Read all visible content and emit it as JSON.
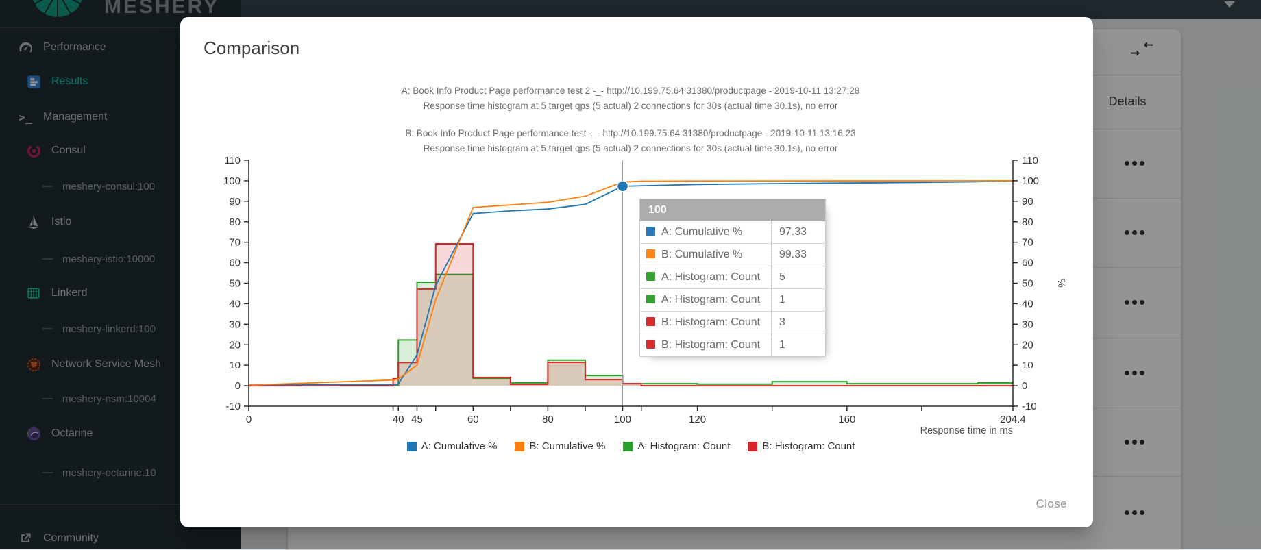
{
  "app": {
    "logo_text": "MESHERY"
  },
  "navbar": {},
  "sidebar": {
    "items": [
      {
        "label": "Performance",
        "icon": "speedometer-icon",
        "indent": 0,
        "active": false
      },
      {
        "label": "Results",
        "icon": "results-icon",
        "indent": 1,
        "active": true
      },
      {
        "label": "Management",
        "icon": "terminal-icon",
        "indent": 0,
        "active": false
      },
      {
        "label": "Consul",
        "icon": "consul-icon",
        "indent": 1,
        "active": false
      },
      {
        "label": "meshery-consul:100",
        "icon": "dash-icon",
        "indent": 2,
        "active": false
      },
      {
        "label": "Istio",
        "icon": "istio-icon",
        "indent": 1,
        "active": false
      },
      {
        "label": "meshery-istio:10000",
        "icon": "dash-icon",
        "indent": 2,
        "active": false
      },
      {
        "label": "Linkerd",
        "icon": "linkerd-icon",
        "indent": 1,
        "active": false
      },
      {
        "label": "meshery-linkerd:100",
        "icon": "dash-icon",
        "indent": 2,
        "active": false
      },
      {
        "label": "Network Service Mesh",
        "icon": "nsm-icon",
        "indent": 1,
        "active": false
      },
      {
        "label": "meshery-nsm:10004",
        "icon": "dash-icon",
        "indent": 2,
        "active": false
      },
      {
        "label": "Octarine",
        "icon": "octarine-icon",
        "indent": 1,
        "active": false
      },
      {
        "label": "meshery-octarine:10",
        "icon": "dash-icon",
        "indent": 2,
        "active": false
      },
      {
        "label": "Community",
        "icon": "external-link-icon",
        "indent": 0,
        "active": false
      }
    ]
  },
  "results_table": {
    "details_header": "Details",
    "row_count": 6,
    "collapse_icon": "compress-icon",
    "row_action_icon": "more-options-icon"
  },
  "modal": {
    "title": "Comparison",
    "close_label": "Close",
    "test_a_line1": "A: Book Info Product Page performance test 2 -_- http://10.199.75.64:31380/productpage - 2019-10-11 13:27:28",
    "test_a_line2": "Response time histogram at 5 target qps (5 actual) 2 connections for 30s (actual time 30.1s), no error",
    "test_b_line1": "B: Book Info Product Page performance test -_- http://10.199.75.64:31380/productpage - 2019-10-11 13:16:23",
    "test_b_line2": "Response time histogram at 5 target qps (5 actual) 2 connections for 30s (actual time 30.1s), no error"
  },
  "tooltip": {
    "header": "100",
    "rows": [
      {
        "name": "A: Cumulative %",
        "value": "97.33",
        "color": "#1f77b4"
      },
      {
        "name": "B: Cumulative %",
        "value": "99.33",
        "color": "#ff7f0e"
      },
      {
        "name": "A: Histogram: Count",
        "value": "5",
        "color": "#2ca02c"
      },
      {
        "name": "A: Histogram: Count",
        "value": "1",
        "color": "#2ca02c"
      },
      {
        "name": "B: Histogram: Count",
        "value": "3",
        "color": "#d62728"
      },
      {
        "name": "B: Histogram: Count",
        "value": "1",
        "color": "#d62728"
      }
    ]
  },
  "legend": [
    {
      "label": "A: Cumulative %",
      "color": "#1f77b4"
    },
    {
      "label": "B: Cumulative %",
      "color": "#ff7f0e"
    },
    {
      "label": "A: Histogram: Count",
      "color": "#2ca02c"
    },
    {
      "label": "B: Histogram: Count",
      "color": "#d62728"
    }
  ],
  "chart_data": {
    "type": "line+area-step",
    "title": "",
    "xlabel": "Response time in ms",
    "ylabel": "%",
    "x_axis": {
      "min": 0,
      "max": 204.4,
      "labeled_ticks": [
        0,
        40,
        45,
        60,
        80,
        100,
        120,
        160,
        204.4
      ],
      "minor_ticks": [
        38.6,
        50,
        70,
        90,
        105,
        140,
        180
      ]
    },
    "y_axis": {
      "min": -10,
      "max": 110,
      "dual": true,
      "ticks": [
        -10,
        0,
        10,
        20,
        30,
        40,
        50,
        60,
        70,
        80,
        90,
        100,
        110
      ]
    },
    "grid": false,
    "legend_position": "bottom",
    "series": [
      {
        "name": "A: Cumulative %",
        "type": "line",
        "color": "#1f77b4",
        "points": [
          [
            0,
            0.33
          ],
          [
            38.6,
            0.5
          ],
          [
            40,
            0.9
          ],
          [
            45,
            15
          ],
          [
            50,
            49
          ],
          [
            60,
            84
          ],
          [
            70,
            85.3
          ],
          [
            80,
            86.2
          ],
          [
            90,
            88.5
          ],
          [
            100,
            97.33
          ],
          [
            120,
            98.2
          ],
          [
            140,
            98.6
          ],
          [
            160,
            98.9
          ],
          [
            180,
            99.2
          ],
          [
            195,
            99.5
          ],
          [
            204.4,
            100
          ]
        ]
      },
      {
        "name": "B: Cumulative %",
        "type": "line",
        "color": "#ff7f0e",
        "points": [
          [
            0,
            0.33
          ],
          [
            38.6,
            2.8
          ],
          [
            40,
            3.3
          ],
          [
            45,
            10
          ],
          [
            50,
            42
          ],
          [
            60,
            87
          ],
          [
            70,
            88.2
          ],
          [
            80,
            89.5
          ],
          [
            90,
            92.5
          ],
          [
            100,
            99.33
          ],
          [
            105,
            99.8
          ],
          [
            120,
            99.9
          ],
          [
            204.4,
            100
          ]
        ]
      },
      {
        "name": "A: Histogram: Count",
        "type": "area-step",
        "color": "#2ca02c",
        "points": [
          [
            0,
            0.33
          ],
          [
            38.6,
            0.33
          ],
          [
            40,
            22.3
          ],
          [
            45,
            50.5
          ],
          [
            50,
            54.3
          ],
          [
            60,
            3.5
          ],
          [
            70,
            1.4
          ],
          [
            80,
            12.5
          ],
          [
            90,
            5
          ],
          [
            100,
            1
          ],
          [
            120,
            0.8
          ],
          [
            140,
            2
          ],
          [
            160,
            1
          ],
          [
            180,
            1
          ],
          [
            195,
            1.4
          ],
          [
            204.4,
            1.4
          ]
        ]
      },
      {
        "name": "B: Histogram: Count",
        "type": "area-step",
        "color": "#d62728",
        "points": [
          [
            0,
            0
          ],
          [
            38.6,
            3.4
          ],
          [
            40,
            11.3
          ],
          [
            45,
            47.2
          ],
          [
            50,
            69.2
          ],
          [
            60,
            4.1
          ],
          [
            70,
            0.7
          ],
          [
            80,
            11.4
          ],
          [
            90,
            3
          ],
          [
            100,
            1
          ],
          [
            105,
            0
          ],
          [
            204.4,
            0
          ]
        ]
      }
    ],
    "focus": {
      "x": 100,
      "series": "A: Cumulative %",
      "y": 97.33,
      "crosshair": true
    }
  },
  "colors": {
    "accent": "#00B39F",
    "sidebar_bg": "#222d33",
    "topbar_bg": "#36444c",
    "tooltip_header_bg": "#aaaaaa"
  }
}
